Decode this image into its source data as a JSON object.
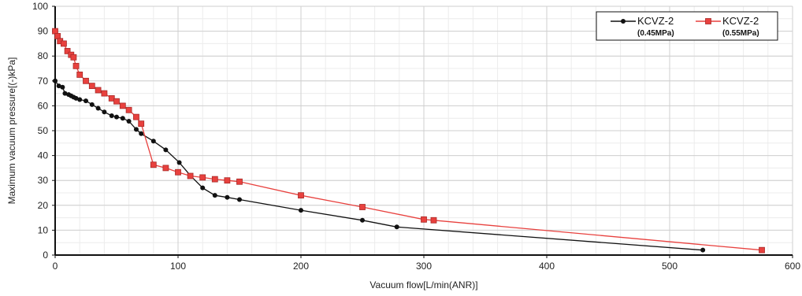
{
  "chart_data": {
    "type": "line",
    "title": "",
    "xlabel": "Vacuum flow[L/min(ANR)]",
    "ylabel": "Maximum vacuum pressure[(-)kPa]",
    "xlim": [
      0,
      600
    ],
    "ylim": [
      0,
      100
    ],
    "xticks": [
      0,
      100,
      200,
      300,
      400,
      500,
      600
    ],
    "yticks": [
      0,
      10,
      20,
      30,
      40,
      50,
      60,
      70,
      80,
      90,
      100
    ],
    "grid": true,
    "legend_position": "top-right",
    "series": [
      {
        "name": "KCVZ-2",
        "subtitle": "(0.45MPa)",
        "color": "#111111",
        "marker": "circle",
        "points": [
          [
            0,
            70
          ],
          [
            3,
            68
          ],
          [
            6,
            67.5
          ],
          [
            8,
            65
          ],
          [
            11,
            64.5
          ],
          [
            13,
            64
          ],
          [
            15,
            63.5
          ],
          [
            17,
            63
          ],
          [
            20,
            62.5
          ],
          [
            25,
            62
          ],
          [
            30,
            60.5
          ],
          [
            35,
            59
          ],
          [
            40,
            57.5
          ],
          [
            46,
            56
          ],
          [
            50,
            55.5
          ],
          [
            55,
            55
          ],
          [
            60,
            53.8
          ],
          [
            66,
            50.5
          ],
          [
            70,
            48.8
          ],
          [
            80,
            45.8
          ],
          [
            90,
            42.3
          ],
          [
            101,
            37.2
          ],
          [
            110,
            32
          ],
          [
            120,
            27
          ],
          [
            130,
            24
          ],
          [
            140,
            23.2
          ],
          [
            150,
            22.3
          ],
          [
            200,
            18
          ],
          [
            250,
            14
          ],
          [
            278,
            11.3
          ],
          [
            527,
            2
          ]
        ]
      },
      {
        "name": "KCVZ-2",
        "subtitle": "(0.55MPa)",
        "color": "#e8413e",
        "marker": "square",
        "points": [
          [
            0,
            90
          ],
          [
            2,
            88
          ],
          [
            4,
            86
          ],
          [
            7,
            85
          ],
          [
            10,
            82
          ],
          [
            13,
            80.5
          ],
          [
            15,
            79.5
          ],
          [
            17,
            76
          ],
          [
            20,
            72.5
          ],
          [
            25,
            70
          ],
          [
            30,
            68
          ],
          [
            35,
            66.3
          ],
          [
            40,
            65
          ],
          [
            46,
            63
          ],
          [
            50,
            61.8
          ],
          [
            55,
            60
          ],
          [
            60,
            58.3
          ],
          [
            66,
            55.5
          ],
          [
            70,
            52.8
          ],
          [
            80,
            36.3
          ],
          [
            90,
            35
          ],
          [
            100,
            33.3
          ],
          [
            110,
            31.8
          ],
          [
            120,
            31.2
          ],
          [
            130,
            30.5
          ],
          [
            140,
            30
          ],
          [
            150,
            29.5
          ],
          [
            200,
            24
          ],
          [
            250,
            19.3
          ],
          [
            300,
            14.3
          ],
          [
            308,
            14
          ],
          [
            575,
            2
          ]
        ]
      }
    ]
  }
}
